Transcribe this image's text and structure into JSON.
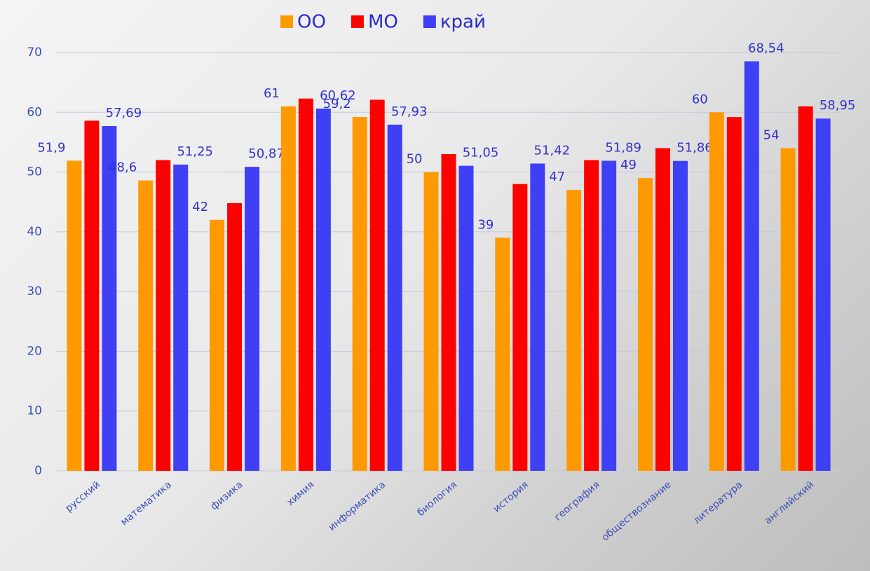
{
  "chart_data": {
    "type": "bar",
    "categories": [
      "русский",
      "математика",
      "физика",
      "химия",
      "информатика",
      "биология",
      "история",
      "география",
      "обществознание",
      "литература",
      "английский"
    ],
    "series": [
      {
        "name": "ОО",
        "color": "#ff9900",
        "values": [
          51.9,
          48.6,
          42,
          61,
          59.2,
          50,
          39,
          47,
          49,
          60,
          54
        ],
        "value_labels": [
          "51,9",
          "48,6",
          "42",
          "61",
          "59,2",
          "50",
          "39",
          "47",
          "49",
          "60",
          "54"
        ]
      },
      {
        "name": "МО",
        "color": "#ff0000",
        "values": [
          58.6,
          52,
          44.8,
          62.3,
          62.1,
          53,
          48,
          52,
          54,
          59.2,
          61
        ]
      },
      {
        "name": "край",
        "color": "#3f3ff5",
        "values": [
          57.69,
          51.25,
          50.87,
          60.62,
          57.93,
          51.05,
          51.42,
          51.89,
          51.86,
          68.54,
          58.95
        ],
        "value_labels": [
          "57,69",
          "51,25",
          "50,87",
          "60,62",
          "57,93",
          "51,05",
          "51,42",
          "51,89",
          "51,86",
          "68,54",
          "58,95"
        ]
      }
    ],
    "ylim": [
      0,
      70
    ],
    "yticks": [
      0,
      10,
      20,
      30,
      40,
      50,
      60,
      70
    ],
    "grid": true
  }
}
